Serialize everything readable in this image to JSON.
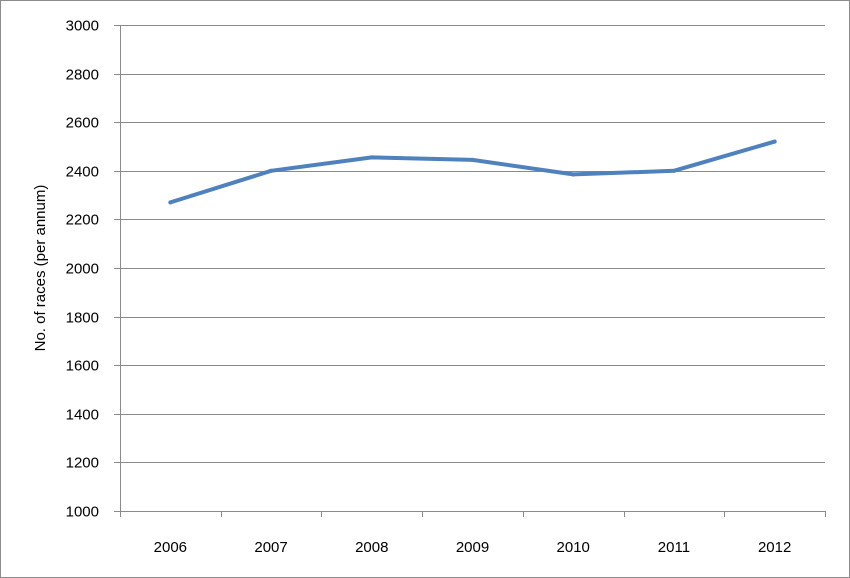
{
  "chart_data": {
    "type": "line",
    "title": "",
    "xlabel": "",
    "ylabel": "No. of races (per annum)",
    "categories": [
      "2006",
      "2007",
      "2008",
      "2009",
      "2010",
      "2011",
      "2012"
    ],
    "series": [
      {
        "values": [
          2270,
          2400,
          2455,
          2445,
          2385,
          2400,
          2520
        ]
      }
    ],
    "ylim": [
      1000,
      3000
    ],
    "yticks": [
      1000,
      1200,
      1400,
      1600,
      1800,
      2000,
      2200,
      2400,
      2600,
      2800,
      3000
    ],
    "grid": true,
    "legend": "none",
    "colors": {
      "line": "#4f81bd",
      "grid": "#8a8a8a"
    }
  }
}
